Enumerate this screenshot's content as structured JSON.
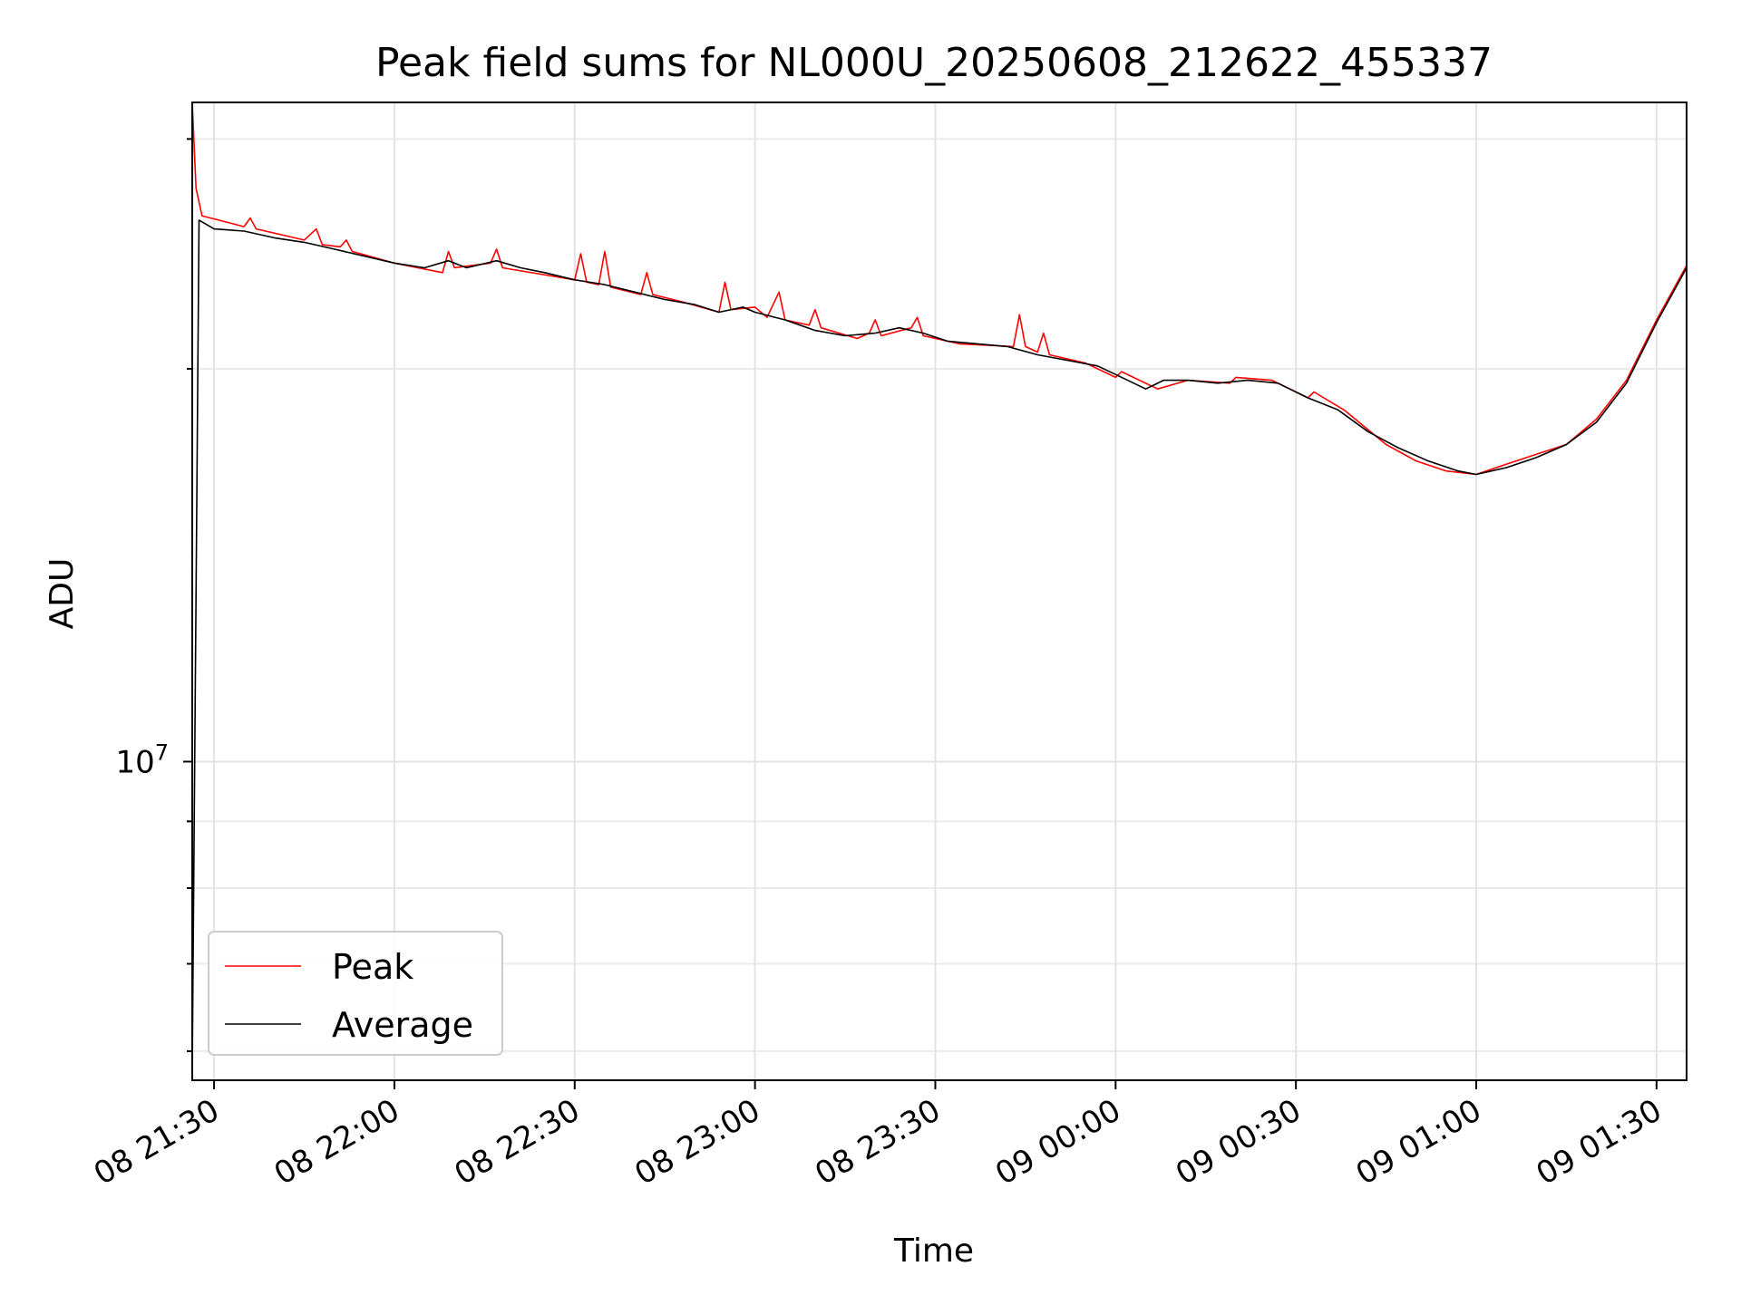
{
  "chart_data": {
    "type": "line",
    "title": "Peak field sums for NL000U_20250608_212622_455337",
    "xlabel": "Time",
    "ylabel": "ADU",
    "x_tick_labels": [
      "08 21:30",
      "08 22:00",
      "08 22:30",
      "08 23:00",
      "08 23:30",
      "09 00:00",
      "09 00:30",
      "09 01:00",
      "09 01:30"
    ],
    "y_tick_labels": [
      {
        "base": "10",
        "exp": "7",
        "value": 10000000
      }
    ],
    "xlim": [
      "2025-06-08 21:26:22",
      "2025-06-09 01:35:00"
    ],
    "ylim": [
      5700000,
      32000000
    ],
    "yscale": "log",
    "grid": true,
    "legend_position": "lower-left",
    "series": [
      {
        "name": "Peak",
        "color": "#ff0000",
        "points": [
          [
            "2025-06-08 21:26:22",
            32000000
          ],
          [
            "2025-06-08 21:27:00",
            27500000
          ],
          [
            "2025-06-08 21:28:00",
            26200000
          ],
          [
            "2025-06-08 21:35:00",
            25700000
          ],
          [
            "2025-06-08 21:36:00",
            26100000
          ],
          [
            "2025-06-08 21:37:00",
            25600000
          ],
          [
            "2025-06-08 21:45:00",
            25100000
          ],
          [
            "2025-06-08 21:47:00",
            25600000
          ],
          [
            "2025-06-08 21:48:00",
            24900000
          ],
          [
            "2025-06-08 21:51:00",
            24800000
          ],
          [
            "2025-06-08 21:52:00",
            25100000
          ],
          [
            "2025-06-08 21:53:00",
            24600000
          ],
          [
            "2025-06-08 22:00:00",
            24100000
          ],
          [
            "2025-06-08 22:08:00",
            23700000
          ],
          [
            "2025-06-08 22:09:00",
            24600000
          ],
          [
            "2025-06-08 22:10:00",
            23900000
          ],
          [
            "2025-06-08 22:16:00",
            24100000
          ],
          [
            "2025-06-08 22:17:00",
            24700000
          ],
          [
            "2025-06-08 22:18:00",
            23900000
          ],
          [
            "2025-06-08 22:30:00",
            23400000
          ],
          [
            "2025-06-08 22:31:00",
            24500000
          ],
          [
            "2025-06-08 22:32:00",
            23300000
          ],
          [
            "2025-06-08 22:34:00",
            23200000
          ],
          [
            "2025-06-08 22:35:00",
            24600000
          ],
          [
            "2025-06-08 22:36:00",
            23100000
          ],
          [
            "2025-06-08 22:41:00",
            22800000
          ],
          [
            "2025-06-08 22:42:00",
            23700000
          ],
          [
            "2025-06-08 22:43:00",
            22800000
          ],
          [
            "2025-06-08 22:48:00",
            22500000
          ],
          [
            "2025-06-08 22:54:00",
            22100000
          ],
          [
            "2025-06-08 22:55:00",
            23300000
          ],
          [
            "2025-06-08 22:56:00",
            22200000
          ],
          [
            "2025-06-08 23:00:00",
            22300000
          ],
          [
            "2025-06-08 23:02:00",
            21900000
          ],
          [
            "2025-06-08 23:04:00",
            22900000
          ],
          [
            "2025-06-08 23:05:00",
            21800000
          ],
          [
            "2025-06-08 23:09:00",
            21600000
          ],
          [
            "2025-06-08 23:10:00",
            22200000
          ],
          [
            "2025-06-08 23:11:00",
            21500000
          ],
          [
            "2025-06-08 23:17:00",
            21100000
          ],
          [
            "2025-06-08 23:19:00",
            21300000
          ],
          [
            "2025-06-08 23:20:00",
            21800000
          ],
          [
            "2025-06-08 23:21:00",
            21200000
          ],
          [
            "2025-06-08 23:26:00",
            21500000
          ],
          [
            "2025-06-08 23:27:00",
            21900000
          ],
          [
            "2025-06-08 23:28:00",
            21200000
          ],
          [
            "2025-06-08 23:34:00",
            20900000
          ],
          [
            "2025-06-08 23:43:00",
            20800000
          ],
          [
            "2025-06-08 23:44:00",
            22000000
          ],
          [
            "2025-06-08 23:45:00",
            20800000
          ],
          [
            "2025-06-08 23:47:00",
            20600000
          ],
          [
            "2025-06-08 23:48:00",
            21300000
          ],
          [
            "2025-06-08 23:49:00",
            20500000
          ],
          [
            "2025-06-08 23:55:00",
            20200000
          ],
          [
            "2025-06-09 00:00:00",
            19700000
          ],
          [
            "2025-06-09 00:01:00",
            19900000
          ],
          [
            "2025-06-09 00:07:00",
            19300000
          ],
          [
            "2025-06-09 00:12:00",
            19600000
          ],
          [
            "2025-06-09 00:19:00",
            19500000
          ],
          [
            "2025-06-09 00:20:00",
            19700000
          ],
          [
            "2025-06-09 00:26:00",
            19600000
          ],
          [
            "2025-06-09 00:32:00",
            19000000
          ],
          [
            "2025-06-09 00:33:00",
            19200000
          ],
          [
            "2025-06-09 00:38:00",
            18600000
          ],
          [
            "2025-06-09 00:45:00",
            17500000
          ],
          [
            "2025-06-09 00:50:00",
            17000000
          ],
          [
            "2025-06-09 00:55:00",
            16700000
          ],
          [
            "2025-06-09 01:00:00",
            16600000
          ],
          [
            "2025-06-09 01:05:00",
            16900000
          ],
          [
            "2025-06-09 01:10:00",
            17200000
          ],
          [
            "2025-06-09 01:15:00",
            17500000
          ],
          [
            "2025-06-09 01:20:00",
            18300000
          ],
          [
            "2025-06-09 01:25:00",
            19600000
          ],
          [
            "2025-06-09 01:30:00",
            21800000
          ],
          [
            "2025-06-09 01:35:00",
            24000000
          ]
        ]
      },
      {
        "name": "Average",
        "color": "#000000",
        "points": [
          [
            "2025-06-08 21:26:22",
            5800000
          ],
          [
            "2025-06-08 21:27:30",
            26000000
          ],
          [
            "2025-06-08 21:30:00",
            25600000
          ],
          [
            "2025-06-08 21:35:00",
            25500000
          ],
          [
            "2025-06-08 21:40:00",
            25200000
          ],
          [
            "2025-06-08 21:45:00",
            25000000
          ],
          [
            "2025-06-08 21:50:00",
            24700000
          ],
          [
            "2025-06-08 21:55:00",
            24400000
          ],
          [
            "2025-06-08 22:00:00",
            24100000
          ],
          [
            "2025-06-08 22:05:00",
            23900000
          ],
          [
            "2025-06-08 22:09:00",
            24200000
          ],
          [
            "2025-06-08 22:12:00",
            23900000
          ],
          [
            "2025-06-08 22:17:00",
            24200000
          ],
          [
            "2025-06-08 22:21:00",
            23900000
          ],
          [
            "2025-06-08 22:25:00",
            23700000
          ],
          [
            "2025-06-08 22:30:00",
            23400000
          ],
          [
            "2025-06-08 22:35:00",
            23200000
          ],
          [
            "2025-06-08 22:40:00",
            22900000
          ],
          [
            "2025-06-08 22:45:00",
            22600000
          ],
          [
            "2025-06-08 22:50:00",
            22400000
          ],
          [
            "2025-06-08 22:54:00",
            22100000
          ],
          [
            "2025-06-08 22:58:00",
            22300000
          ],
          [
            "2025-06-08 23:00:00",
            22100000
          ],
          [
            "2025-06-08 23:05:00",
            21800000
          ],
          [
            "2025-06-08 23:10:00",
            21400000
          ],
          [
            "2025-06-08 23:15:00",
            21200000
          ],
          [
            "2025-06-08 23:20:00",
            21300000
          ],
          [
            "2025-06-08 23:24:00",
            21500000
          ],
          [
            "2025-06-08 23:28:00",
            21300000
          ],
          [
            "2025-06-08 23:32:00",
            21000000
          ],
          [
            "2025-06-08 23:37:00",
            20900000
          ],
          [
            "2025-06-08 23:42:00",
            20800000
          ],
          [
            "2025-06-08 23:47:00",
            20500000
          ],
          [
            "2025-06-08 23:52:00",
            20300000
          ],
          [
            "2025-06-08 23:57:00",
            20100000
          ],
          [
            "2025-06-09 00:00:00",
            19800000
          ],
          [
            "2025-06-09 00:05:00",
            19300000
          ],
          [
            "2025-06-09 00:08:00",
            19600000
          ],
          [
            "2025-06-09 00:12:00",
            19600000
          ],
          [
            "2025-06-09 00:17:00",
            19500000
          ],
          [
            "2025-06-09 00:22:00",
            19600000
          ],
          [
            "2025-06-09 00:27:00",
            19500000
          ],
          [
            "2025-06-09 00:32:00",
            19000000
          ],
          [
            "2025-06-09 00:37:00",
            18600000
          ],
          [
            "2025-06-09 00:42:00",
            17900000
          ],
          [
            "2025-06-09 00:47:00",
            17400000
          ],
          [
            "2025-06-09 00:52:00",
            17000000
          ],
          [
            "2025-06-09 00:57:00",
            16700000
          ],
          [
            "2025-06-09 01:00:00",
            16600000
          ],
          [
            "2025-06-09 01:05:00",
            16800000
          ],
          [
            "2025-06-09 01:10:00",
            17100000
          ],
          [
            "2025-06-09 01:15:00",
            17500000
          ],
          [
            "2025-06-09 01:20:00",
            18200000
          ],
          [
            "2025-06-09 01:25:00",
            19500000
          ],
          [
            "2025-06-09 01:30:00",
            21700000
          ],
          [
            "2025-06-09 01:35:00",
            23900000
          ]
        ]
      }
    ]
  }
}
